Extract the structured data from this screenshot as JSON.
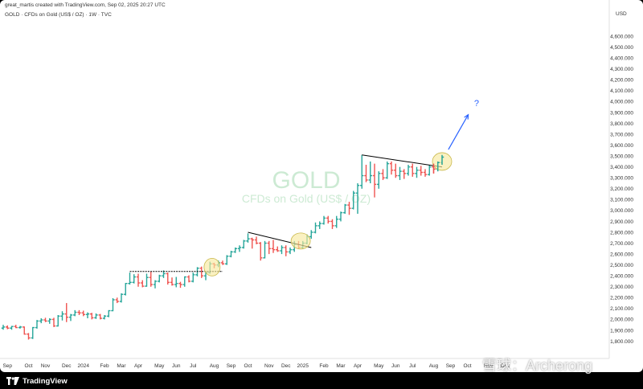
{
  "header": {
    "credit": "great_martis created with TradingView.com, Sep 02, 2025 20:27 UTC",
    "symbol": "GOLD · CFDs on Gold (US$ / OZ) · 1W · TVC",
    "currency": "USD"
  },
  "watermark": {
    "ticker": "GOLD",
    "subtitle": "CFDs on Gold (US$ / OZ)",
    "overlay": "雪球：Archerong"
  },
  "footer": {
    "logo_text": "TradingView"
  },
  "colors": {
    "up": "#26a69a",
    "down": "#ef5350",
    "highlight": "#f7e9a0",
    "arrow": "#2962ff",
    "trendline": "#000000"
  },
  "chart_data": {
    "type": "ohlc",
    "ylim": [
      1700,
      4700
    ],
    "y_ticks": [
      1800,
      1900,
      2000,
      2100,
      2200,
      2300,
      2400,
      2500,
      2600,
      2700,
      2800,
      2900,
      3000,
      3100,
      3200,
      3300,
      3400,
      3500,
      3600,
      3700,
      3800,
      3900,
      4000,
      4100,
      4200,
      4300,
      4400,
      4500,
      4600
    ],
    "y_tick_labels": [
      "1,800.000",
      "1,900.000",
      "2,000.000",
      "2,100.000",
      "2,200.000",
      "2,300.000",
      "2,400.000",
      "2,500.000",
      "2,600.000",
      "2,700.000",
      "2,800.000",
      "2,900.000",
      "3,000.000",
      "3,100.000",
      "3,200.000",
      "3,300.000",
      "3,400.000",
      "3,500.000",
      "3,600.000",
      "3,700.000",
      "3,800.000",
      "3,900.000",
      "4,000.000",
      "4,100.000",
      "4,200.000",
      "4,300.000",
      "4,400.000",
      "4,500.000",
      "4,600.000"
    ],
    "x_labels": [
      "Sep",
      "Oct",
      "Nov",
      "Dec",
      "2024",
      "Feb",
      "Mar",
      "Apr",
      "May",
      "Jun",
      "Jul",
      "Aug",
      "Sep",
      "Oct",
      "Nov",
      "Dec",
      "2025",
      "Feb",
      "Mar",
      "Apr",
      "May",
      "Jun",
      "Jul",
      "Aug",
      "Sep",
      "Oct",
      "Nov",
      "Dec"
    ],
    "x_label_weeks": [
      1,
      6,
      10,
      15,
      19,
      24,
      28,
      32,
      37,
      41,
      45,
      50,
      54,
      58,
      63,
      67,
      71,
      76,
      80,
      84,
      89,
      93,
      97,
      102,
      106,
      110,
      115,
      119
    ],
    "weeks": [
      {
        "w": 0,
        "o": 1920,
        "h": 1950,
        "l": 1905,
        "c": 1930
      },
      {
        "w": 1,
        "o": 1930,
        "h": 1945,
        "l": 1910,
        "c": 1920
      },
      {
        "w": 2,
        "o": 1920,
        "h": 1940,
        "l": 1905,
        "c": 1935
      },
      {
        "w": 3,
        "o": 1935,
        "h": 1950,
        "l": 1920,
        "c": 1925
      },
      {
        "w": 4,
        "o": 1925,
        "h": 1940,
        "l": 1915,
        "c": 1930
      },
      {
        "w": 5,
        "o": 1930,
        "h": 1935,
        "l": 1860,
        "c": 1865
      },
      {
        "w": 6,
        "o": 1865,
        "h": 1875,
        "l": 1815,
        "c": 1830
      },
      {
        "w": 7,
        "o": 1830,
        "h": 1930,
        "l": 1820,
        "c": 1925
      },
      {
        "w": 8,
        "o": 1925,
        "h": 1995,
        "l": 1915,
        "c": 1985
      },
      {
        "w": 9,
        "o": 1985,
        "h": 2010,
        "l": 1965,
        "c": 1995
      },
      {
        "w": 10,
        "o": 1995,
        "h": 2015,
        "l": 1975,
        "c": 1985
      },
      {
        "w": 11,
        "o": 1985,
        "h": 2010,
        "l": 1960,
        "c": 2000
      },
      {
        "w": 12,
        "o": 2000,
        "h": 2015,
        "l": 1930,
        "c": 1940
      },
      {
        "w": 13,
        "o": 1940,
        "h": 2040,
        "l": 1935,
        "c": 2030
      },
      {
        "w": 14,
        "o": 2030,
        "h": 2075,
        "l": 1990,
        "c": 2050
      },
      {
        "w": 15,
        "o": 2050,
        "h": 2150,
        "l": 1975,
        "c": 2020
      },
      {
        "w": 16,
        "o": 2020,
        "h": 2050,
        "l": 1985,
        "c": 2040
      },
      {
        "w": 17,
        "o": 2040,
        "h": 2085,
        "l": 2030,
        "c": 2065
      },
      {
        "w": 18,
        "o": 2065,
        "h": 2085,
        "l": 2040,
        "c": 2060
      },
      {
        "w": 19,
        "o": 2060,
        "h": 2080,
        "l": 2030,
        "c": 2045
      },
      {
        "w": 20,
        "o": 2045,
        "h": 2065,
        "l": 2010,
        "c": 2050
      },
      {
        "w": 21,
        "o": 2050,
        "h": 2060,
        "l": 2000,
        "c": 2015
      },
      {
        "w": 22,
        "o": 2015,
        "h": 2055,
        "l": 2005,
        "c": 2040
      },
      {
        "w": 23,
        "o": 2040,
        "h": 2050,
        "l": 2000,
        "c": 2010
      },
      {
        "w": 24,
        "o": 2010,
        "h": 2040,
        "l": 2000,
        "c": 2030
      },
      {
        "w": 25,
        "o": 2030,
        "h": 2085,
        "l": 2020,
        "c": 2080
      },
      {
        "w": 26,
        "o": 2080,
        "h": 2195,
        "l": 2075,
        "c": 2180
      },
      {
        "w": 27,
        "o": 2180,
        "h": 2200,
        "l": 2150,
        "c": 2165
      },
      {
        "w": 28,
        "o": 2165,
        "h": 2240,
        "l": 2155,
        "c": 2230
      },
      {
        "w": 29,
        "o": 2230,
        "h": 2335,
        "l": 2220,
        "c": 2330
      },
      {
        "w": 30,
        "o": 2330,
        "h": 2430,
        "l": 2320,
        "c": 2340
      },
      {
        "w": 31,
        "o": 2340,
        "h": 2415,
        "l": 2330,
        "c": 2390
      },
      {
        "w": 32,
        "o": 2390,
        "h": 2420,
        "l": 2300,
        "c": 2335
      },
      {
        "w": 33,
        "o": 2335,
        "h": 2360,
        "l": 2295,
        "c": 2305
      },
      {
        "w": 34,
        "o": 2305,
        "h": 2420,
        "l": 2300,
        "c": 2385
      },
      {
        "w": 35,
        "o": 2385,
        "h": 2440,
        "l": 2300,
        "c": 2320
      },
      {
        "w": 36,
        "o": 2320,
        "h": 2360,
        "l": 2285,
        "c": 2350
      },
      {
        "w": 37,
        "o": 2350,
        "h": 2410,
        "l": 2340,
        "c": 2400
      },
      {
        "w": 38,
        "o": 2400,
        "h": 2450,
        "l": 2380,
        "c": 2420
      },
      {
        "w": 39,
        "o": 2420,
        "h": 2430,
        "l": 2320,
        "c": 2340
      },
      {
        "w": 40,
        "o": 2340,
        "h": 2385,
        "l": 2310,
        "c": 2320
      },
      {
        "w": 41,
        "o": 2320,
        "h": 2390,
        "l": 2295,
        "c": 2330
      },
      {
        "w": 42,
        "o": 2330,
        "h": 2345,
        "l": 2290,
        "c": 2320
      },
      {
        "w": 43,
        "o": 2320,
        "h": 2395,
        "l": 2300,
        "c": 2390
      },
      {
        "w": 44,
        "o": 2390,
        "h": 2405,
        "l": 2340,
        "c": 2350
      },
      {
        "w": 45,
        "o": 2350,
        "h": 2430,
        "l": 2340,
        "c": 2410
      },
      {
        "w": 46,
        "o": 2410,
        "h": 2480,
        "l": 2395,
        "c": 2470
      },
      {
        "w": 47,
        "o": 2470,
        "h": 2485,
        "l": 2380,
        "c": 2400
      },
      {
        "w": 48,
        "o": 2400,
        "h": 2440,
        "l": 2360,
        "c": 2430
      },
      {
        "w": 49,
        "o": 2430,
        "h": 2530,
        "l": 2420,
        "c": 2510
      },
      {
        "w": 50,
        "o": 2510,
        "h": 2520,
        "l": 2470,
        "c": 2500
      },
      {
        "w": 51,
        "o": 2500,
        "h": 2540,
        "l": 2480,
        "c": 2520
      },
      {
        "w": 52,
        "o": 2520,
        "h": 2540,
        "l": 2500,
        "c": 2510
      },
      {
        "w": 53,
        "o": 2510,
        "h": 2590,
        "l": 2500,
        "c": 2580
      },
      {
        "w": 54,
        "o": 2580,
        "h": 2630,
        "l": 2570,
        "c": 2620
      },
      {
        "w": 55,
        "o": 2620,
        "h": 2660,
        "l": 2610,
        "c": 2650
      },
      {
        "w": 56,
        "o": 2650,
        "h": 2680,
        "l": 2620,
        "c": 2660
      },
      {
        "w": 57,
        "o": 2660,
        "h": 2730,
        "l": 2650,
        "c": 2720
      },
      {
        "w": 58,
        "o": 2720,
        "h": 2790,
        "l": 2705,
        "c": 2740
      },
      {
        "w": 59,
        "o": 2740,
        "h": 2750,
        "l": 2650,
        "c": 2730
      },
      {
        "w": 60,
        "o": 2730,
        "h": 2760,
        "l": 2690,
        "c": 2700
      },
      {
        "w": 61,
        "o": 2700,
        "h": 2710,
        "l": 2540,
        "c": 2565
      },
      {
        "w": 62,
        "o": 2565,
        "h": 2720,
        "l": 2560,
        "c": 2700
      },
      {
        "w": 63,
        "o": 2700,
        "h": 2720,
        "l": 2600,
        "c": 2650
      },
      {
        "w": 64,
        "o": 2650,
        "h": 2730,
        "l": 2610,
        "c": 2640
      },
      {
        "w": 65,
        "o": 2640,
        "h": 2670,
        "l": 2620,
        "c": 2630
      },
      {
        "w": 66,
        "o": 2630,
        "h": 2680,
        "l": 2600,
        "c": 2660
      },
      {
        "w": 67,
        "o": 2660,
        "h": 2680,
        "l": 2580,
        "c": 2620
      },
      {
        "w": 68,
        "o": 2620,
        "h": 2660,
        "l": 2600,
        "c": 2640
      },
      {
        "w": 69,
        "o": 2640,
        "h": 2720,
        "l": 2620,
        "c": 2690
      },
      {
        "w": 70,
        "o": 2690,
        "h": 2720,
        "l": 2650,
        "c": 2660
      },
      {
        "w": 71,
        "o": 2660,
        "h": 2720,
        "l": 2650,
        "c": 2700
      },
      {
        "w": 72,
        "o": 2700,
        "h": 2780,
        "l": 2690,
        "c": 2760
      },
      {
        "w": 73,
        "o": 2760,
        "h": 2820,
        "l": 2740,
        "c": 2800
      },
      {
        "w": 74,
        "o": 2800,
        "h": 2890,
        "l": 2790,
        "c": 2860
      },
      {
        "w": 75,
        "o": 2860,
        "h": 2900,
        "l": 2830,
        "c": 2880
      },
      {
        "w": 76,
        "o": 2880,
        "h": 2950,
        "l": 2870,
        "c": 2930
      },
      {
        "w": 77,
        "o": 2930,
        "h": 2950,
        "l": 2880,
        "c": 2900
      },
      {
        "w": 78,
        "o": 2900,
        "h": 2920,
        "l": 2830,
        "c": 2860
      },
      {
        "w": 79,
        "o": 2860,
        "h": 2950,
        "l": 2840,
        "c": 2920
      },
      {
        "w": 80,
        "o": 2920,
        "h": 2990,
        "l": 2900,
        "c": 2980
      },
      {
        "w": 81,
        "o": 2980,
        "h": 3060,
        "l": 2970,
        "c": 3050
      },
      {
        "w": 82,
        "o": 3050,
        "h": 3080,
        "l": 2960,
        "c": 3020
      },
      {
        "w": 83,
        "o": 3020,
        "h": 3180,
        "l": 3010,
        "c": 3160
      },
      {
        "w": 84,
        "o": 3160,
        "h": 3250,
        "l": 2970,
        "c": 3230
      },
      {
        "w": 85,
        "o": 3230,
        "h": 3510,
        "l": 3200,
        "c": 3320
      },
      {
        "w": 86,
        "o": 3320,
        "h": 3420,
        "l": 3260,
        "c": 3280
      },
      {
        "w": 87,
        "o": 3280,
        "h": 3450,
        "l": 3250,
        "c": 3320
      },
      {
        "w": 88,
        "o": 3320,
        "h": 3430,
        "l": 3120,
        "c": 3240
      },
      {
        "w": 89,
        "o": 3240,
        "h": 3360,
        "l": 3200,
        "c": 3340
      },
      {
        "w": 90,
        "o": 3340,
        "h": 3380,
        "l": 3280,
        "c": 3300
      },
      {
        "w": 91,
        "o": 3300,
        "h": 3450,
        "l": 3290,
        "c": 3430
      },
      {
        "w": 92,
        "o": 3430,
        "h": 3450,
        "l": 3330,
        "c": 3370
      },
      {
        "w": 93,
        "o": 3370,
        "h": 3430,
        "l": 3300,
        "c": 3320
      },
      {
        "w": 94,
        "o": 3320,
        "h": 3400,
        "l": 3280,
        "c": 3360
      },
      {
        "w": 95,
        "o": 3360,
        "h": 3380,
        "l": 3290,
        "c": 3340
      },
      {
        "w": 96,
        "o": 3340,
        "h": 3420,
        "l": 3320,
        "c": 3400
      },
      {
        "w": 97,
        "o": 3400,
        "h": 3430,
        "l": 3310,
        "c": 3340
      },
      {
        "w": 98,
        "o": 3340,
        "h": 3400,
        "l": 3300,
        "c": 3370
      },
      {
        "w": 99,
        "o": 3370,
        "h": 3410,
        "l": 3320,
        "c": 3350
      },
      {
        "w": 100,
        "o": 3350,
        "h": 3380,
        "l": 3310,
        "c": 3330
      },
      {
        "w": 101,
        "o": 3330,
        "h": 3420,
        "l": 3320,
        "c": 3400
      },
      {
        "w": 102,
        "o": 3400,
        "h": 3430,
        "l": 3340,
        "c": 3380
      },
      {
        "w": 103,
        "o": 3380,
        "h": 3450,
        "l": 3360,
        "c": 3440
      },
      {
        "w": 104,
        "o": 3440,
        "h": 3510,
        "l": 3420,
        "c": 3490
      }
    ]
  },
  "annotations": {
    "question_mark": "?"
  }
}
